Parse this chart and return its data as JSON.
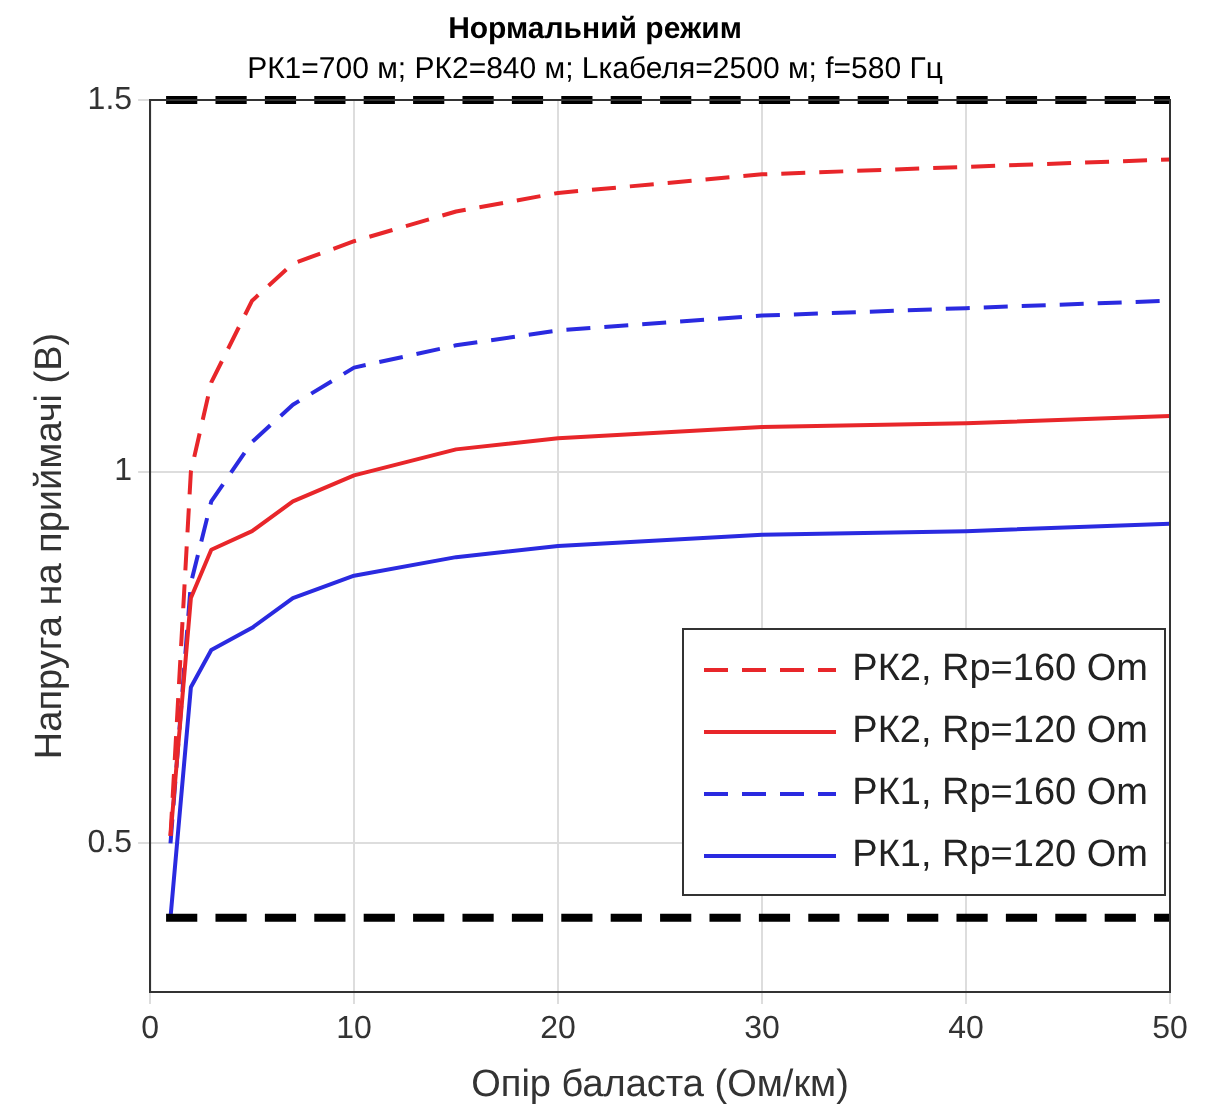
{
  "chart_data": {
    "type": "line",
    "title": "Нормальний режим",
    "subtitle": "РК1=700 м; РК2=840 м; Lкабеля=2500 м; f=580 Гц",
    "xlabel": "Опір баласта (Ом/км)",
    "ylabel": "Напруга на приймачі (В)",
    "x": [
      1,
      2,
      3,
      5,
      7,
      10,
      15,
      20,
      30,
      40,
      50
    ],
    "series": [
      {
        "name": "РК2, Rp=160 Om",
        "color": "#e8262a",
        "line_style": "dashed",
        "values": [
          0.51,
          1.0,
          1.12,
          1.23,
          1.28,
          1.31,
          1.35,
          1.375,
          1.4,
          1.41,
          1.42
        ]
      },
      {
        "name": "РК2, Rp=120 Om",
        "color": "#e8262a",
        "line_style": "solid",
        "values": [
          0.51,
          0.83,
          0.895,
          0.92,
          0.96,
          0.995,
          1.03,
          1.045,
          1.06,
          1.065,
          1.075
        ]
      },
      {
        "name": "РК1, Rp=160 Om",
        "color": "#2a2ae0",
        "line_style": "dashed",
        "values": [
          0.5,
          0.85,
          0.96,
          1.04,
          1.09,
          1.14,
          1.17,
          1.19,
          1.21,
          1.22,
          1.23
        ]
      },
      {
        "name": "РК1, Rp=120 Om",
        "color": "#2a2ae0",
        "line_style": "solid",
        "values": [
          0.4,
          0.71,
          0.76,
          0.79,
          0.83,
          0.86,
          0.885,
          0.9,
          0.915,
          0.92,
          0.93
        ]
      }
    ],
    "xlim": [
      0,
      50
    ],
    "xticks": [
      0,
      10,
      20,
      30,
      40,
      50
    ],
    "ylim": [
      0.3,
      1.5
    ],
    "yticks": [
      0.5,
      1,
      1.5
    ],
    "ref_lines": [
      {
        "axis": "y",
        "value": 1.5,
        "color": "#000000",
        "line_style": "dashed"
      },
      {
        "axis": "y",
        "value": 0.4,
        "color": "#000000",
        "line_style": "dashed"
      }
    ],
    "grid": true,
    "legend": "bottom right",
    "marker": "none"
  }
}
